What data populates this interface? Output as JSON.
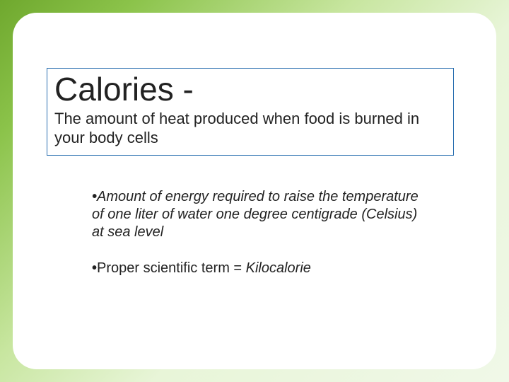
{
  "slide": {
    "background_gradient": [
      "#6fa82e",
      "#8bc34a",
      "#c8e6a0",
      "#e8f5d8",
      "#f0f8e8"
    ],
    "card_background": "#ffffff",
    "card_border_radius": 34,
    "title_box": {
      "border_color": "#2a6fb0",
      "title": "Calories -",
      "title_fontsize": 46,
      "subtitle": "The amount of heat produced when food is burned in your body cells",
      "subtitle_fontsize": 22
    },
    "bullets": {
      "fontsize": 20,
      "items": [
        {
          "marker": "•",
          "prefix": "Amount  of energy required to raise the temperature of one liter of water one degree centigrade (Celsius) at sea level",
          "italic_part": "",
          "full_italic": true
        },
        {
          "marker": "•",
          "prefix": "Proper scientific term = ",
          "italic_part": "Kilocalorie",
          "full_italic": false
        }
      ]
    }
  }
}
